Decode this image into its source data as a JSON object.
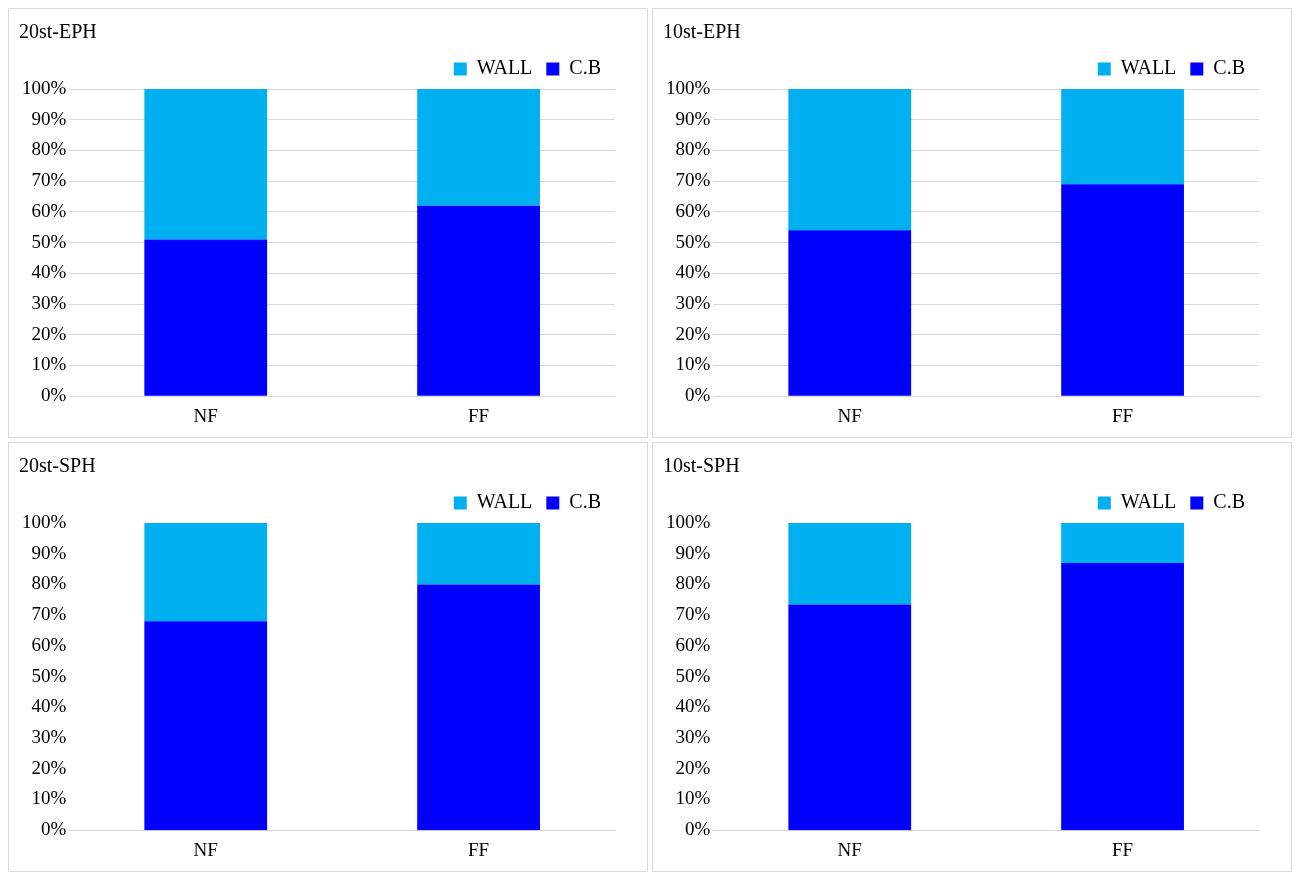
{
  "chart_data": [
    {
      "type": "bar",
      "title": "20st-EPH",
      "categories": [
        "NF",
        "FF"
      ],
      "stacked": true,
      "legend": "top right",
      "grid": "y",
      "ylim": [
        0,
        100
      ],
      "yticks": [
        {
          "value": 0,
          "label": "0%"
        },
        {
          "value": 10,
          "label": "10%"
        },
        {
          "value": 20,
          "label": "20%"
        },
        {
          "value": 30,
          "label": "30%"
        },
        {
          "value": 40,
          "label": "40%"
        },
        {
          "value": 50,
          "label": "50%"
        },
        {
          "value": 60,
          "label": "60%"
        },
        {
          "value": 70,
          "label": "70%"
        },
        {
          "value": 80,
          "label": "80%"
        },
        {
          "value": 90,
          "label": "90%"
        },
        {
          "value": 100,
          "label": "100%"
        }
      ],
      "series": [
        {
          "name": "C.B",
          "color": "#0000ff",
          "values": [
            51,
            62
          ]
        },
        {
          "name": "WALL",
          "color": "#00b0f0",
          "values": [
            49,
            38
          ]
        }
      ]
    },
    {
      "type": "bar",
      "title": "10st-EPH",
      "categories": [
        "NF",
        "FF"
      ],
      "stacked": true,
      "legend": "top right",
      "grid": "y",
      "ylim": [
        0,
        100
      ],
      "yticks": [
        {
          "value": 0,
          "label": "0%"
        },
        {
          "value": 10,
          "label": "10%"
        },
        {
          "value": 20,
          "label": "20%"
        },
        {
          "value": 30,
          "label": "30%"
        },
        {
          "value": 40,
          "label": "40%"
        },
        {
          "value": 50,
          "label": "50%"
        },
        {
          "value": 60,
          "label": "60%"
        },
        {
          "value": 70,
          "label": "70%"
        },
        {
          "value": 80,
          "label": "80%"
        },
        {
          "value": 90,
          "label": "90%"
        },
        {
          "value": 100,
          "label": "100%"
        }
      ],
      "series": [
        {
          "name": "C.B",
          "color": "#0000ff",
          "values": [
            54,
            69
          ]
        },
        {
          "name": "WALL",
          "color": "#00b0f0",
          "values": [
            46,
            31
          ]
        }
      ]
    },
    {
      "type": "bar",
      "title": "20st-SPH",
      "categories": [
        "NF",
        "FF"
      ],
      "stacked": true,
      "legend": "top right",
      "grid": false,
      "ylim": [
        0,
        100
      ],
      "yticks": [
        {
          "value": 0,
          "label": "0%"
        },
        {
          "value": 10,
          "label": "10%"
        },
        {
          "value": 20,
          "label": "20%"
        },
        {
          "value": 30,
          "label": "30%"
        },
        {
          "value": 40,
          "label": "40%"
        },
        {
          "value": 50,
          "label": "50%"
        },
        {
          "value": 60,
          "label": "60%"
        },
        {
          "value": 70,
          "label": "70%"
        },
        {
          "value": 80,
          "label": "80%"
        },
        {
          "value": 90,
          "label": "90%"
        },
        {
          "value": 100,
          "label": "100%"
        }
      ],
      "series": [
        {
          "name": "C.B",
          "color": "#0000ff",
          "values": [
            68,
            80
          ]
        },
        {
          "name": "WALL",
          "color": "#00b0f0",
          "values": [
            32,
            20
          ]
        }
      ]
    },
    {
      "type": "bar",
      "title": "10st-SPH",
      "categories": [
        "NF",
        "FF"
      ],
      "stacked": true,
      "legend": "top right",
      "grid": false,
      "ylim": [
        0,
        100
      ],
      "yticks": [
        {
          "value": 0,
          "label": "0%"
        },
        {
          "value": 10,
          "label": "10%"
        },
        {
          "value": 20,
          "label": "20%"
        },
        {
          "value": 30,
          "label": "30%"
        },
        {
          "value": 40,
          "label": "40%"
        },
        {
          "value": 50,
          "label": "50%"
        },
        {
          "value": 60,
          "label": "60%"
        },
        {
          "value": 70,
          "label": "70%"
        },
        {
          "value": 80,
          "label": "80%"
        },
        {
          "value": 90,
          "label": "90%"
        },
        {
          "value": 100,
          "label": "100%"
        }
      ],
      "series": [
        {
          "name": "C.B",
          "color": "#0000ff",
          "values": [
            73.5,
            87
          ]
        },
        {
          "name": "WALL",
          "color": "#00b0f0",
          "values": [
            26.5,
            13
          ]
        }
      ]
    }
  ]
}
